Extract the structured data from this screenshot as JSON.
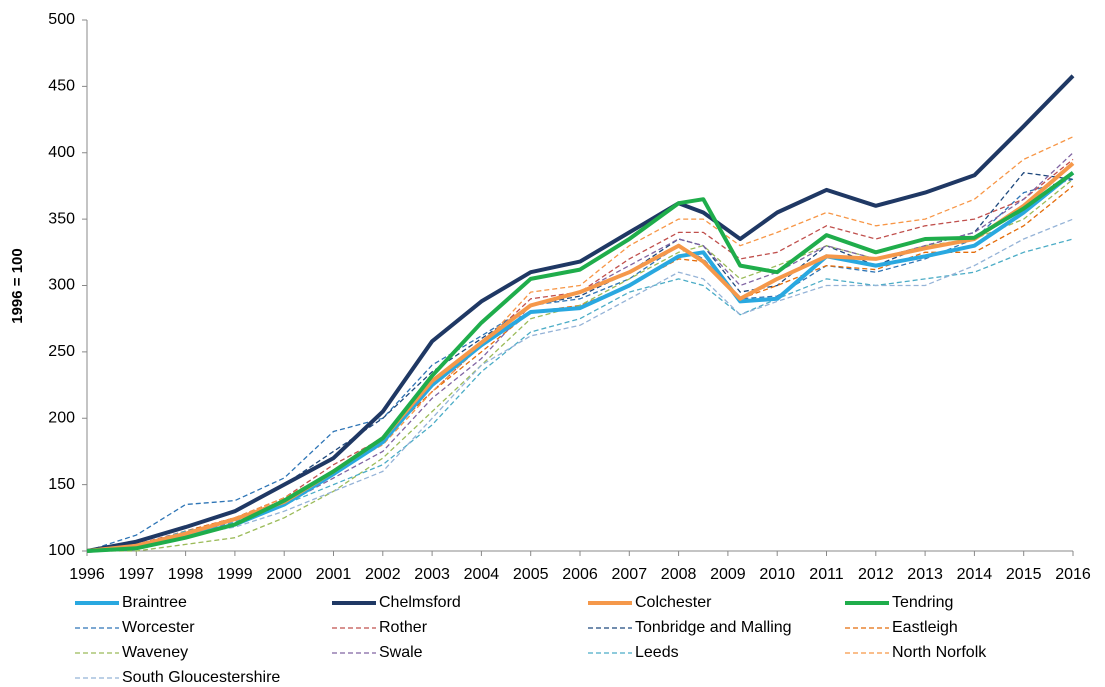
{
  "chart_data": {
    "type": "line",
    "y_label": "1996 = 100",
    "x": [
      1996,
      1997,
      1998,
      1999,
      2000,
      2001,
      2002,
      2003,
      2004,
      2005,
      2006,
      2007,
      2008,
      2008.5,
      2009.25,
      2010,
      2011,
      2012,
      2013,
      2014,
      2015,
      2016
    ],
    "xlim": [
      1996,
      2016
    ],
    "xticks": [
      1996,
      1997,
      1998,
      1999,
      2000,
      2001,
      2002,
      2003,
      2004,
      2005,
      2006,
      2007,
      2008,
      2009,
      2010,
      2011,
      2012,
      2013,
      2014,
      2015,
      2016
    ],
    "ylim": [
      100,
      500
    ],
    "yticks": [
      100,
      150,
      200,
      250,
      300,
      350,
      400,
      450,
      500
    ],
    "grid": false,
    "legend": "bottom",
    "series": [
      {
        "name": "Braintree",
        "color": "#29a8e0",
        "dashed": false,
        "values": [
          100,
          103,
          111,
          120,
          135,
          158,
          182,
          225,
          255,
          280,
          283,
          300,
          322,
          325,
          288,
          290,
          322,
          315,
          322,
          330,
          355,
          385
        ]
      },
      {
        "name": "Chelmsford",
        "color": "#1f3864",
        "dashed": false,
        "values": [
          100,
          107,
          118,
          130,
          150,
          170,
          205,
          258,
          288,
          310,
          318,
          340,
          362,
          355,
          335,
          355,
          372,
          360,
          370,
          383,
          420,
          458
        ]
      },
      {
        "name": "Colchester",
        "color": "#f5984a",
        "dashed": false,
        "values": [
          100,
          104,
          113,
          124,
          137,
          160,
          185,
          228,
          257,
          285,
          295,
          310,
          330,
          318,
          290,
          305,
          322,
          320,
          328,
          335,
          360,
          392
        ]
      },
      {
        "name": "Tendring",
        "color": "#1fad4b",
        "dashed": false,
        "values": [
          100,
          102,
          110,
          120,
          138,
          160,
          185,
          232,
          272,
          305,
          312,
          335,
          362,
          365,
          315,
          310,
          338,
          325,
          335,
          336,
          358,
          385
        ]
      },
      {
        "name": "Worcester",
        "color": "#2e75b6",
        "dashed": true,
        "values": [
          100,
          112,
          135,
          138,
          155,
          190,
          200,
          240,
          262,
          285,
          290,
          305,
          330,
          320,
          290,
          292,
          315,
          310,
          320,
          335,
          370,
          380
        ]
      },
      {
        "name": "Rother",
        "color": "#c0504d",
        "dashed": true,
        "values": [
          100,
          105,
          115,
          125,
          140,
          165,
          185,
          220,
          255,
          290,
          295,
          320,
          340,
          340,
          320,
          325,
          345,
          335,
          345,
          350,
          365,
          395
        ]
      },
      {
        "name": "Tonbridge and Malling",
        "color": "#1f497d",
        "dashed": true,
        "values": [
          100,
          106,
          118,
          130,
          150,
          175,
          200,
          235,
          260,
          285,
          292,
          310,
          335,
          330,
          295,
          300,
          330,
          315,
          330,
          340,
          385,
          380
        ]
      },
      {
        "name": "Eastleigh",
        "color": "#e46c0a",
        "dashed": true,
        "values": [
          100,
          103,
          115,
          125,
          140,
          160,
          185,
          220,
          250,
          280,
          285,
          300,
          320,
          318,
          290,
          300,
          315,
          312,
          325,
          325,
          345,
          375
        ]
      },
      {
        "name": "Waveney",
        "color": "#9bbb59",
        "dashed": true,
        "values": [
          100,
          100,
          105,
          110,
          125,
          145,
          170,
          205,
          240,
          275,
          285,
          305,
          325,
          330,
          305,
          315,
          330,
          320,
          330,
          335,
          350,
          380
        ]
      },
      {
        "name": "Swale",
        "color": "#8064a2",
        "dashed": true,
        "values": [
          100,
          103,
          112,
          122,
          135,
          155,
          175,
          215,
          245,
          285,
          295,
          315,
          335,
          330,
          300,
          310,
          330,
          320,
          330,
          340,
          365,
          400
        ]
      },
      {
        "name": "Leeds",
        "color": "#4bacc6",
        "dashed": true,
        "values": [
          100,
          104,
          115,
          122,
          135,
          150,
          165,
          195,
          235,
          265,
          275,
          295,
          305,
          300,
          278,
          290,
          305,
          300,
          305,
          310,
          325,
          335
        ]
      },
      {
        "name": "North Norfolk",
        "color": "#f79646",
        "dashed": true,
        "values": [
          100,
          103,
          112,
          125,
          140,
          160,
          180,
          220,
          255,
          295,
          300,
          330,
          350,
          350,
          330,
          340,
          355,
          345,
          350,
          365,
          395,
          412
        ]
      },
      {
        "name": "South Gloucestershire",
        "color": "#95b3d7",
        "dashed": true,
        "values": [
          100,
          104,
          112,
          118,
          130,
          145,
          160,
          200,
          240,
          262,
          270,
          290,
          310,
          305,
          278,
          288,
          300,
          300,
          300,
          315,
          335,
          350
        ]
      }
    ]
  }
}
